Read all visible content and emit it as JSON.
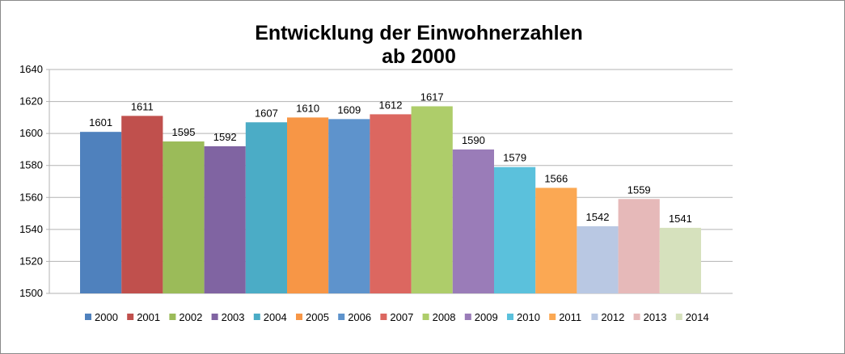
{
  "chart_data": {
    "type": "bar",
    "title": [
      "Entwicklung der Einwohnerzahlen",
      "ab 2000"
    ],
    "xlabel": "",
    "ylabel": "",
    "ylim": [
      1500,
      1640
    ],
    "ytick_step": 20,
    "yticks": [
      "1500",
      "1520",
      "1540",
      "1560",
      "1580",
      "1600",
      "1620",
      "1640"
    ],
    "grid": true,
    "legend_position": "bottom",
    "series": [
      {
        "name": "2000",
        "value": 1601,
        "label": "1601",
        "color": "#4F81BD"
      },
      {
        "name": "2001",
        "value": 1611,
        "label": "1611",
        "color": "#C0504D"
      },
      {
        "name": "2002",
        "value": 1595,
        "label": "1595",
        "color": "#9BBB59"
      },
      {
        "name": "2003",
        "value": 1592,
        "label": "1592",
        "color": "#8064A2"
      },
      {
        "name": "2004",
        "value": 1607,
        "label": "1607",
        "color": "#4BACC6"
      },
      {
        "name": "2005",
        "value": 1610,
        "label": "1610",
        "color": "#F79646"
      },
      {
        "name": "2006",
        "value": 1609,
        "label": "1609",
        "color": "#5E93CC"
      },
      {
        "name": "2007",
        "value": 1612,
        "label": "1612",
        "color": "#DC6760"
      },
      {
        "name": "2008",
        "value": 1617,
        "label": "1617",
        "color": "#AECD6A"
      },
      {
        "name": "2009",
        "value": 1590,
        "label": "1590",
        "color": "#9A7CB8"
      },
      {
        "name": "2010",
        "value": 1579,
        "label": "1579",
        "color": "#5BC1DC"
      },
      {
        "name": "2011",
        "value": 1566,
        "label": "1566",
        "color": "#FBA853"
      },
      {
        "name": "2012",
        "value": 1542,
        "label": "1542",
        "color": "#B9C8E3"
      },
      {
        "name": "2013",
        "value": 1559,
        "label": "1559",
        "color": "#E6B9B9"
      },
      {
        "name": "2014",
        "value": 1541,
        "label": "1541",
        "color": "#D6E1BD"
      }
    ]
  }
}
